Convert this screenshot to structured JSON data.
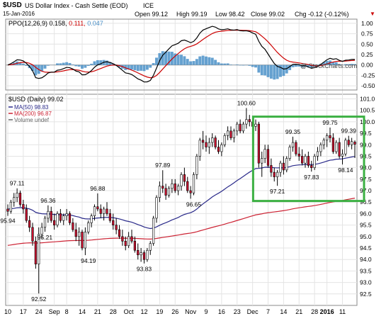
{
  "header": {
    "symbol": "$USD",
    "name": "US Dollar Index - Cash Settle (EOD)",
    "exchange": "ICE",
    "date": "15-Jan-2016",
    "open": "Open 99.12",
    "high": "High 99.19",
    "low": "Low 98.42",
    "close": "Close 99.02",
    "chg": "Chg -0.12 (-0.12%)",
    "chg_icon": "down-triangle-icon",
    "watermark": "@ StockCharts.com"
  },
  "ppo_panel": {
    "label_prefix": "PPO(12,26,9)",
    "ppo": "0.158",
    "signal": "0.111",
    "hist": "0.047",
    "colors": {
      "ppo": "#000000",
      "signal": "#cc0000",
      "hist": "#4a90c8"
    },
    "ylim": [
      -0.6,
      1.1
    ],
    "y_ticks": [
      "1.00",
      "0.75",
      "0.50",
      "0.25",
      "0.00",
      "-0.25",
      "-0.50"
    ],
    "y_tick_values": [
      1.0,
      0.75,
      0.5,
      0.25,
      0.0,
      -0.25,
      -0.5
    ]
  },
  "price_panel": {
    "label": "$USD (Daily) 99.02",
    "legend": [
      {
        "text": "MA(50) 98.83",
        "color": "#2a2a8a"
      },
      {
        "text": "MA(200) 96.87",
        "color": "#cc2233"
      },
      {
        "text": "Volume undef",
        "color": "#666666"
      }
    ],
    "ylim": [
      92.0,
      101.2
    ],
    "y_ticks": [
      "101.0",
      "100.5",
      "100.0",
      "99.5",
      "99.0",
      "98.5",
      "98.0",
      "97.5",
      "97.0",
      "96.5",
      "96.0",
      "95.5",
      "95.0",
      "94.5",
      "94.0",
      "93.5",
      "93.0",
      "92.5"
    ],
    "y_tick_values": [
      101.0,
      100.5,
      100.0,
      99.5,
      99.0,
      98.5,
      98.0,
      97.5,
      97.0,
      96.5,
      96.0,
      95.5,
      95.0,
      94.5,
      94.0,
      93.5,
      93.0,
      92.5
    ],
    "highlight_color": "#3cb043"
  },
  "chart_data": {
    "type": "candlestick",
    "x_tick_labels": [
      "10",
      "17",
      "24",
      "Sep",
      "8",
      "14",
      "21",
      "28",
      "Oct",
      "12",
      "19",
      "26",
      "Nov",
      "9",
      "16",
      "23",
      "Dec",
      "7",
      "14",
      "21",
      "28",
      "2016",
      "11"
    ],
    "x_tick_index": [
      0,
      5,
      10,
      15,
      19,
      24,
      29,
      34,
      39,
      44,
      49,
      54,
      59,
      64,
      69,
      74,
      79,
      84,
      89,
      94,
      99,
      103,
      108
    ],
    "annotations": [
      {
        "text": "97.11",
        "i": 3,
        "v": 97.11
      },
      {
        "text": "96.36",
        "i": 13,
        "v": 96.36
      },
      {
        "text": "95.94",
        "i": 0,
        "v": 95.94
      },
      {
        "text": "95.21",
        "i": 12,
        "v": 95.21
      },
      {
        "text": "92.52",
        "i": 10,
        "v": 92.52
      },
      {
        "text": "96.88",
        "i": 29,
        "v": 96.88
      },
      {
        "text": "94.19",
        "i": 26,
        "v": 94.19
      },
      {
        "text": "93.83",
        "i": 44,
        "v": 93.83
      },
      {
        "text": "97.89",
        "i": 50,
        "v": 97.89
      },
      {
        "text": "96.65",
        "i": 60,
        "v": 96.65
      },
      {
        "text": "100.60",
        "i": 77,
        "v": 100.6
      },
      {
        "text": "97.21",
        "i": 87,
        "v": 97.21
      },
      {
        "text": "99.35",
        "i": 92,
        "v": 99.35
      },
      {
        "text": "97.83",
        "i": 98,
        "v": 97.83
      },
      {
        "text": "99.75",
        "i": 104,
        "v": 99.75
      },
      {
        "text": "99.39",
        "i": 110,
        "v": 99.39
      },
      {
        "text": "98.14",
        "i": 109,
        "v": 98.14
      }
    ],
    "candles": [
      {
        "o": 96.2,
        "h": 96.4,
        "l": 95.9,
        "c": 96.1
      },
      {
        "o": 96.1,
        "h": 96.6,
        "l": 96.0,
        "c": 96.5
      },
      {
        "o": 96.5,
        "h": 96.9,
        "l": 96.3,
        "c": 96.7
      },
      {
        "o": 96.7,
        "h": 97.1,
        "l": 96.5,
        "c": 96.9
      },
      {
        "o": 96.9,
        "h": 97.0,
        "l": 96.3,
        "c": 96.4
      },
      {
        "o": 96.4,
        "h": 96.6,
        "l": 96.0,
        "c": 96.2
      },
      {
        "o": 96.2,
        "h": 96.4,
        "l": 95.6,
        "c": 95.7
      },
      {
        "o": 95.7,
        "h": 95.9,
        "l": 95.2,
        "c": 95.4
      },
      {
        "o": 95.4,
        "h": 95.6,
        "l": 94.6,
        "c": 94.8
      },
      {
        "o": 94.8,
        "h": 95.0,
        "l": 93.6,
        "c": 93.8
      },
      {
        "o": 93.8,
        "h": 95.4,
        "l": 92.52,
        "c": 95.1
      },
      {
        "o": 95.1,
        "h": 95.6,
        "l": 94.9,
        "c": 95.4
      },
      {
        "o": 95.4,
        "h": 95.9,
        "l": 95.21,
        "c": 95.8
      },
      {
        "o": 95.8,
        "h": 96.36,
        "l": 95.6,
        "c": 96.1
      },
      {
        "o": 96.1,
        "h": 96.3,
        "l": 95.6,
        "c": 95.7
      },
      {
        "o": 95.7,
        "h": 96.0,
        "l": 95.3,
        "c": 95.5
      },
      {
        "o": 95.5,
        "h": 96.1,
        "l": 95.4,
        "c": 96.0
      },
      {
        "o": 96.0,
        "h": 96.2,
        "l": 95.6,
        "c": 95.7
      },
      {
        "o": 95.7,
        "h": 96.0,
        "l": 95.5,
        "c": 95.9
      },
      {
        "o": 95.9,
        "h": 96.2,
        "l": 95.7,
        "c": 96.0
      },
      {
        "o": 96.0,
        "h": 96.1,
        "l": 95.5,
        "c": 95.6
      },
      {
        "o": 95.6,
        "h": 95.8,
        "l": 95.2,
        "c": 95.3
      },
      {
        "o": 95.3,
        "h": 95.6,
        "l": 94.8,
        "c": 95.0
      },
      {
        "o": 95.0,
        "h": 95.4,
        "l": 94.6,
        "c": 95.2
      },
      {
        "o": 95.2,
        "h": 95.3,
        "l": 94.4,
        "c": 94.5
      },
      {
        "o": 94.5,
        "h": 95.4,
        "l": 94.19,
        "c": 95.2
      },
      {
        "o": 95.2,
        "h": 95.7,
        "l": 95.1,
        "c": 95.6
      },
      {
        "o": 95.6,
        "h": 96.0,
        "l": 95.4,
        "c": 95.9
      },
      {
        "o": 95.9,
        "h": 96.4,
        "l": 95.7,
        "c": 96.3
      },
      {
        "o": 96.3,
        "h": 96.88,
        "l": 96.1,
        "c": 96.2
      },
      {
        "o": 96.2,
        "h": 96.4,
        "l": 95.8,
        "c": 96.0
      },
      {
        "o": 96.0,
        "h": 96.3,
        "l": 95.7,
        "c": 96.2
      },
      {
        "o": 96.2,
        "h": 96.5,
        "l": 95.9,
        "c": 96.0
      },
      {
        "o": 96.0,
        "h": 96.2,
        "l": 95.6,
        "c": 95.7
      },
      {
        "o": 95.7,
        "h": 96.0,
        "l": 95.3,
        "c": 95.5
      },
      {
        "o": 95.5,
        "h": 95.8,
        "l": 95.1,
        "c": 95.3
      },
      {
        "o": 95.3,
        "h": 95.5,
        "l": 94.9,
        "c": 95.0
      },
      {
        "o": 95.0,
        "h": 95.3,
        "l": 94.6,
        "c": 94.8
      },
      {
        "o": 94.8,
        "h": 95.0,
        "l": 94.4,
        "c": 94.6
      },
      {
        "o": 94.6,
        "h": 95.2,
        "l": 94.5,
        "c": 95.0
      },
      {
        "o": 95.0,
        "h": 95.3,
        "l": 94.7,
        "c": 94.8
      },
      {
        "o": 94.8,
        "h": 95.0,
        "l": 94.3,
        "c": 94.4
      },
      {
        "o": 94.4,
        "h": 94.7,
        "l": 94.0,
        "c": 94.2
      },
      {
        "o": 94.2,
        "h": 94.5,
        "l": 93.9,
        "c": 94.3
      },
      {
        "o": 94.3,
        "h": 94.4,
        "l": 93.83,
        "c": 94.0
      },
      {
        "o": 94.0,
        "h": 94.5,
        "l": 93.9,
        "c": 94.4
      },
      {
        "o": 94.4,
        "h": 94.8,
        "l": 94.2,
        "c": 94.7
      },
      {
        "o": 94.7,
        "h": 95.9,
        "l": 94.6,
        "c": 95.8
      },
      {
        "o": 95.8,
        "h": 96.8,
        "l": 95.6,
        "c": 96.7
      },
      {
        "o": 96.7,
        "h": 97.4,
        "l": 96.5,
        "c": 97.2
      },
      {
        "o": 97.2,
        "h": 97.89,
        "l": 96.9,
        "c": 97.1
      },
      {
        "o": 97.1,
        "h": 97.3,
        "l": 96.6,
        "c": 96.8
      },
      {
        "o": 96.8,
        "h": 97.2,
        "l": 96.7,
        "c": 97.1
      },
      {
        "o": 97.1,
        "h": 97.5,
        "l": 96.9,
        "c": 97.3
      },
      {
        "o": 97.3,
        "h": 97.5,
        "l": 96.9,
        "c": 97.0
      },
      {
        "o": 97.0,
        "h": 97.3,
        "l": 96.8,
        "c": 97.2
      },
      {
        "o": 97.2,
        "h": 97.8,
        "l": 97.0,
        "c": 97.7
      },
      {
        "o": 97.7,
        "h": 98.0,
        "l": 97.2,
        "c": 97.4
      },
      {
        "o": 97.4,
        "h": 97.6,
        "l": 96.9,
        "c": 97.0
      },
      {
        "o": 97.0,
        "h": 97.2,
        "l": 96.65,
        "c": 96.9
      },
      {
        "o": 96.9,
        "h": 97.8,
        "l": 96.8,
        "c": 97.7
      },
      {
        "o": 97.7,
        "h": 98.6,
        "l": 97.5,
        "c": 98.5
      },
      {
        "o": 98.5,
        "h": 99.3,
        "l": 98.3,
        "c": 99.2
      },
      {
        "o": 99.2,
        "h": 99.6,
        "l": 98.8,
        "c": 99.1
      },
      {
        "o": 99.1,
        "h": 99.4,
        "l": 98.7,
        "c": 98.9
      },
      {
        "o": 98.9,
        "h": 99.3,
        "l": 98.6,
        "c": 99.1
      },
      {
        "o": 99.1,
        "h": 99.5,
        "l": 98.9,
        "c": 99.3
      },
      {
        "o": 99.3,
        "h": 99.4,
        "l": 98.8,
        "c": 98.9
      },
      {
        "o": 98.9,
        "h": 99.2,
        "l": 98.6,
        "c": 98.7
      },
      {
        "o": 98.7,
        "h": 99.1,
        "l": 98.5,
        "c": 99.0
      },
      {
        "o": 99.0,
        "h": 99.5,
        "l": 98.9,
        "c": 99.4
      },
      {
        "o": 99.4,
        "h": 99.8,
        "l": 99.2,
        "c": 99.6
      },
      {
        "o": 99.6,
        "h": 99.8,
        "l": 99.2,
        "c": 99.3
      },
      {
        "o": 99.3,
        "h": 99.7,
        "l": 99.1,
        "c": 99.6
      },
      {
        "o": 99.6,
        "h": 100.0,
        "l": 99.4,
        "c": 99.9
      },
      {
        "o": 99.9,
        "h": 100.1,
        "l": 99.5,
        "c": 99.6
      },
      {
        "o": 99.6,
        "h": 100.0,
        "l": 99.5,
        "c": 99.9
      },
      {
        "o": 99.9,
        "h": 100.6,
        "l": 99.7,
        "c": 100.1
      },
      {
        "o": 100.1,
        "h": 100.3,
        "l": 99.8,
        "c": 100.0
      },
      {
        "o": 100.0,
        "h": 100.2,
        "l": 99.7,
        "c": 99.8
      },
      {
        "o": 99.8,
        "h": 100.1,
        "l": 99.6,
        "c": 99.9
      },
      {
        "o": 99.9,
        "h": 100.0,
        "l": 98.0,
        "c": 98.2
      },
      {
        "o": 98.2,
        "h": 98.7,
        "l": 97.6,
        "c": 98.4
      },
      {
        "o": 98.4,
        "h": 99.0,
        "l": 98.2,
        "c": 98.8
      },
      {
        "o": 98.8,
        "h": 99.0,
        "l": 98.0,
        "c": 98.1
      },
      {
        "o": 98.1,
        "h": 98.4,
        "l": 97.6,
        "c": 97.8
      },
      {
        "o": 97.8,
        "h": 98.0,
        "l": 97.4,
        "c": 97.6
      },
      {
        "o": 97.6,
        "h": 97.9,
        "l": 97.21,
        "c": 97.8
      },
      {
        "o": 97.8,
        "h": 98.3,
        "l": 97.6,
        "c": 98.2
      },
      {
        "o": 98.2,
        "h": 98.5,
        "l": 97.7,
        "c": 97.9
      },
      {
        "o": 97.9,
        "h": 98.5,
        "l": 97.8,
        "c": 98.4
      },
      {
        "o": 98.4,
        "h": 99.0,
        "l": 98.3,
        "c": 98.9
      },
      {
        "o": 98.9,
        "h": 99.35,
        "l": 98.7,
        "c": 99.1
      },
      {
        "o": 99.1,
        "h": 99.2,
        "l": 98.5,
        "c": 98.6
      },
      {
        "o": 98.6,
        "h": 98.9,
        "l": 98.3,
        "c": 98.5
      },
      {
        "o": 98.5,
        "h": 98.8,
        "l": 98.1,
        "c": 98.2
      },
      {
        "o": 98.2,
        "h": 98.6,
        "l": 98.0,
        "c": 98.5
      },
      {
        "o": 98.5,
        "h": 98.7,
        "l": 98.0,
        "c": 98.1
      },
      {
        "o": 98.1,
        "h": 98.3,
        "l": 97.83,
        "c": 98.0
      },
      {
        "o": 98.0,
        "h": 98.6,
        "l": 97.9,
        "c": 98.5
      },
      {
        "o": 98.5,
        "h": 98.9,
        "l": 98.3,
        "c": 98.7
      },
      {
        "o": 98.7,
        "h": 99.1,
        "l": 98.5,
        "c": 99.0
      },
      {
        "o": 99.0,
        "h": 99.3,
        "l": 98.8,
        "c": 99.2
      },
      {
        "o": 99.2,
        "h": 99.5,
        "l": 98.9,
        "c": 99.4
      },
      {
        "o": 99.4,
        "h": 99.75,
        "l": 99.1,
        "c": 99.3
      },
      {
        "o": 99.3,
        "h": 99.5,
        "l": 98.6,
        "c": 98.7
      },
      {
        "o": 98.7,
        "h": 99.2,
        "l": 98.6,
        "c": 99.1
      },
      {
        "o": 99.1,
        "h": 99.3,
        "l": 98.4,
        "c": 98.5
      },
      {
        "o": 98.5,
        "h": 98.8,
        "l": 98.14,
        "c": 98.6
      },
      {
        "o": 98.6,
        "h": 99.3,
        "l": 98.5,
        "c": 99.2
      },
      {
        "o": 99.2,
        "h": 99.39,
        "l": 98.9,
        "c": 99.0
      },
      {
        "o": 99.0,
        "h": 99.3,
        "l": 98.8,
        "c": 99.14
      },
      {
        "o": 99.12,
        "h": 99.19,
        "l": 98.42,
        "c": 99.02
      }
    ]
  }
}
